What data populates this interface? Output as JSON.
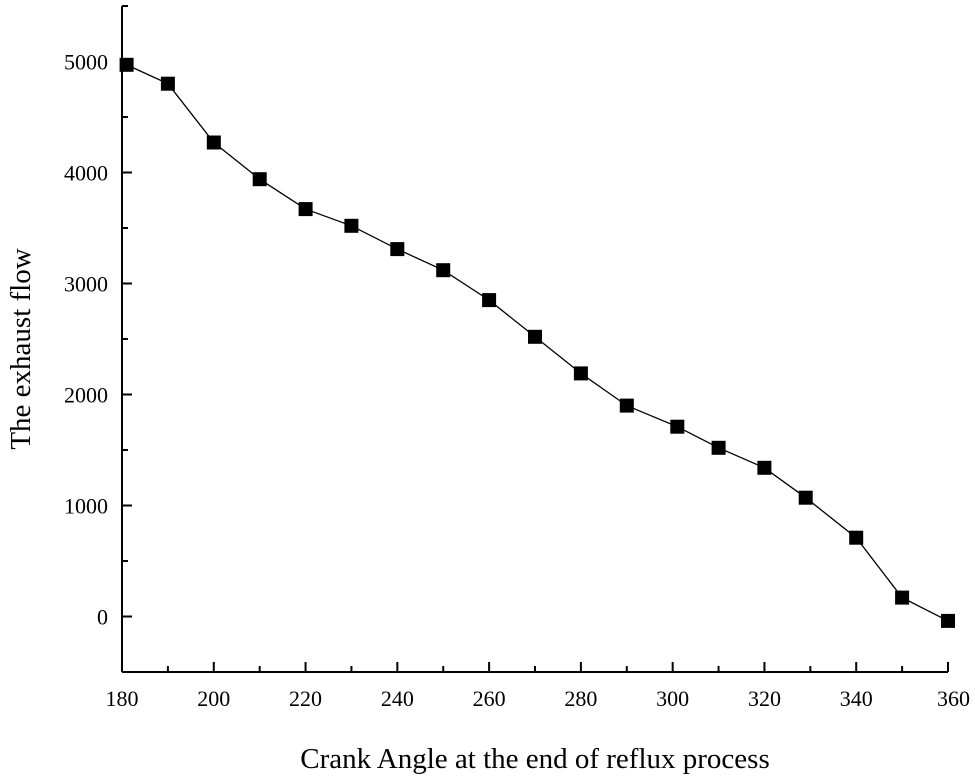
{
  "chart_data": {
    "type": "line",
    "title": "",
    "xlabel": "Crank Angle at the end of reflux process",
    "ylabel": "The exhaust flow",
    "xlim": [
      180,
      360
    ],
    "ylim": [
      -500,
      5500
    ],
    "xticks": [
      180,
      200,
      220,
      240,
      260,
      280,
      300,
      320,
      340,
      360
    ],
    "yticks": [
      0,
      1000,
      2000,
      3000,
      4000,
      5000
    ],
    "marker": "square",
    "colors": {
      "line": "#000000",
      "marker": "#000000",
      "axis": "#000000"
    },
    "series": [
      {
        "name": "exhaust flow",
        "x": [
          181,
          190,
          200,
          210,
          220,
          230,
          240,
          250,
          260,
          270,
          280,
          290,
          301,
          310,
          320,
          329,
          340,
          350,
          360
        ],
        "y": [
          4970,
          4800,
          4270,
          3940,
          3670,
          3520,
          3310,
          3120,
          2850,
          2520,
          2190,
          1900,
          1710,
          1520,
          1340,
          1070,
          710,
          170,
          -40
        ]
      }
    ]
  }
}
